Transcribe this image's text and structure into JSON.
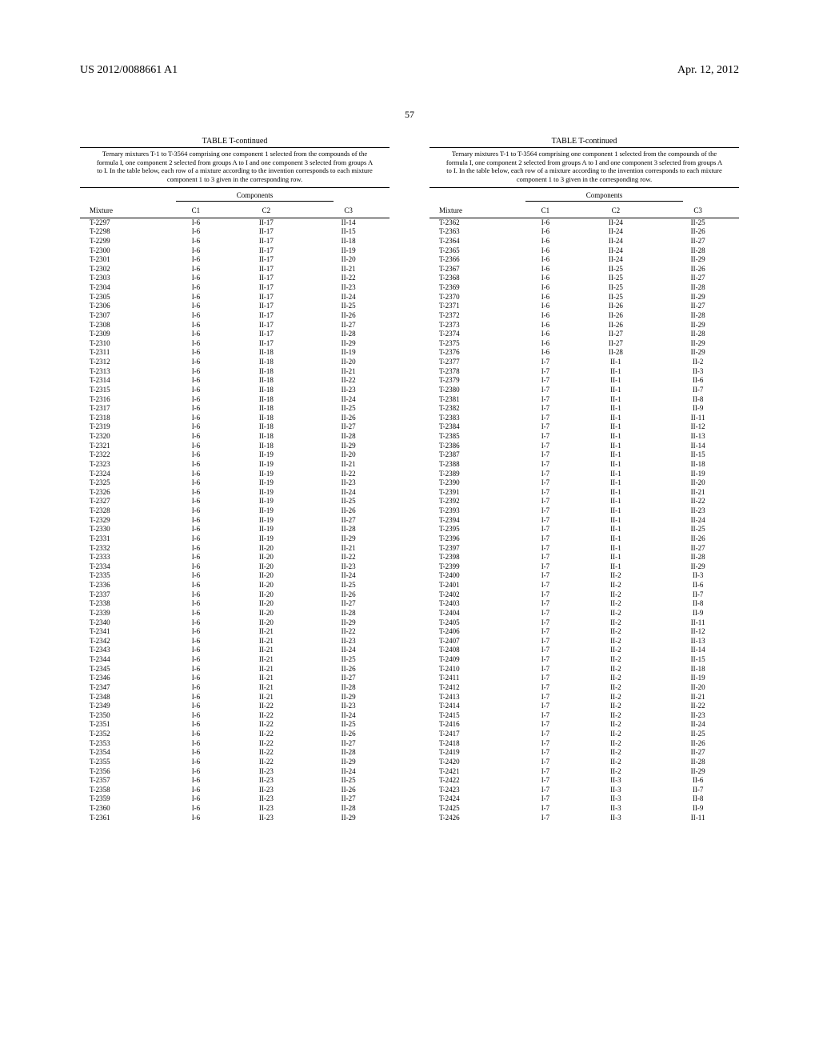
{
  "header": {
    "left": "US 2012/0088661 A1",
    "right": "Apr. 12, 2012",
    "pageNum": "57"
  },
  "table": {
    "title": "TABLE T-continued",
    "caption": "Ternary mixtures T-1 to T-3564 comprising one component 1 selected from the compounds of the formula I, one component 2 selected from groups A to I and one component 3 selected from groups A to I. In the table below, each row of a mixture according to the invention corresponds to each mixture component 1 to 3 given in the corresponding row.",
    "compHeader": "Components",
    "headers": {
      "mix": "Mixture",
      "c1": "C1",
      "c2": "C2",
      "c3": "C3"
    }
  },
  "left": [
    [
      "T-2297",
      "I-6",
      "II-17",
      "II-14"
    ],
    [
      "T-2298",
      "I-6",
      "II-17",
      "II-15"
    ],
    [
      "T-2299",
      "I-6",
      "II-17",
      "II-18"
    ],
    [
      "T-2300",
      "I-6",
      "II-17",
      "II-19"
    ],
    [
      "T-2301",
      "I-6",
      "II-17",
      "II-20"
    ],
    [
      "T-2302",
      "I-6",
      "II-17",
      "II-21"
    ],
    [
      "T-2303",
      "I-6",
      "II-17",
      "II-22"
    ],
    [
      "T-2304",
      "I-6",
      "II-17",
      "II-23"
    ],
    [
      "T-2305",
      "I-6",
      "II-17",
      "II-24"
    ],
    [
      "T-2306",
      "I-6",
      "II-17",
      "II-25"
    ],
    [
      "T-2307",
      "I-6",
      "II-17",
      "II-26"
    ],
    [
      "T-2308",
      "I-6",
      "II-17",
      "II-27"
    ],
    [
      "T-2309",
      "I-6",
      "II-17",
      "II-28"
    ],
    [
      "T-2310",
      "I-6",
      "II-17",
      "II-29"
    ],
    [
      "T-2311",
      "I-6",
      "II-18",
      "II-19"
    ],
    [
      "T-2312",
      "I-6",
      "II-18",
      "II-20"
    ],
    [
      "T-2313",
      "I-6",
      "II-18",
      "II-21"
    ],
    [
      "T-2314",
      "I-6",
      "II-18",
      "II-22"
    ],
    [
      "T-2315",
      "I-6",
      "II-18",
      "II-23"
    ],
    [
      "T-2316",
      "I-6",
      "II-18",
      "II-24"
    ],
    [
      "T-2317",
      "I-6",
      "II-18",
      "II-25"
    ],
    [
      "T-2318",
      "I-6",
      "II-18",
      "II-26"
    ],
    [
      "T-2319",
      "I-6",
      "II-18",
      "II-27"
    ],
    [
      "T-2320",
      "I-6",
      "II-18",
      "II-28"
    ],
    [
      "T-2321",
      "I-6",
      "II-18",
      "II-29"
    ],
    [
      "T-2322",
      "I-6",
      "II-19",
      "II-20"
    ],
    [
      "T-2323",
      "I-6",
      "II-19",
      "II-21"
    ],
    [
      "T-2324",
      "I-6",
      "II-19",
      "II-22"
    ],
    [
      "T-2325",
      "I-6",
      "II-19",
      "II-23"
    ],
    [
      "T-2326",
      "I-6",
      "II-19",
      "II-24"
    ],
    [
      "T-2327",
      "I-6",
      "II-19",
      "II-25"
    ],
    [
      "T-2328",
      "I-6",
      "II-19",
      "II-26"
    ],
    [
      "T-2329",
      "I-6",
      "II-19",
      "II-27"
    ],
    [
      "T-2330",
      "I-6",
      "II-19",
      "II-28"
    ],
    [
      "T-2331",
      "I-6",
      "II-19",
      "II-29"
    ],
    [
      "T-2332",
      "I-6",
      "II-20",
      "II-21"
    ],
    [
      "T-2333",
      "I-6",
      "II-20",
      "II-22"
    ],
    [
      "T-2334",
      "I-6",
      "II-20",
      "II-23"
    ],
    [
      "T-2335",
      "I-6",
      "II-20",
      "II-24"
    ],
    [
      "T-2336",
      "I-6",
      "II-20",
      "II-25"
    ],
    [
      "T-2337",
      "I-6",
      "II-20",
      "II-26"
    ],
    [
      "T-2338",
      "I-6",
      "II-20",
      "II-27"
    ],
    [
      "T-2339",
      "I-6",
      "II-20",
      "II-28"
    ],
    [
      "T-2340",
      "I-6",
      "II-20",
      "II-29"
    ],
    [
      "T-2341",
      "I-6",
      "II-21",
      "II-22"
    ],
    [
      "T-2342",
      "I-6",
      "II-21",
      "II-23"
    ],
    [
      "T-2343",
      "I-6",
      "II-21",
      "II-24"
    ],
    [
      "T-2344",
      "I-6",
      "II-21",
      "II-25"
    ],
    [
      "T-2345",
      "I-6",
      "II-21",
      "II-26"
    ],
    [
      "T-2346",
      "I-6",
      "II-21",
      "II-27"
    ],
    [
      "T-2347",
      "I-6",
      "II-21",
      "II-28"
    ],
    [
      "T-2348",
      "I-6",
      "II-21",
      "II-29"
    ],
    [
      "T-2349",
      "I-6",
      "II-22",
      "II-23"
    ],
    [
      "T-2350",
      "I-6",
      "II-22",
      "II-24"
    ],
    [
      "T-2351",
      "I-6",
      "II-22",
      "II-25"
    ],
    [
      "T-2352",
      "I-6",
      "II-22",
      "II-26"
    ],
    [
      "T-2353",
      "I-6",
      "II-22",
      "II-27"
    ],
    [
      "T-2354",
      "I-6",
      "II-22",
      "II-28"
    ],
    [
      "T-2355",
      "I-6",
      "II-22",
      "II-29"
    ],
    [
      "T-2356",
      "I-6",
      "II-23",
      "II-24"
    ],
    [
      "T-2357",
      "I-6",
      "II-23",
      "II-25"
    ],
    [
      "T-2358",
      "I-6",
      "II-23",
      "II-26"
    ],
    [
      "T-2359",
      "I-6",
      "II-23",
      "II-27"
    ],
    [
      "T-2360",
      "I-6",
      "II-23",
      "II-28"
    ],
    [
      "T-2361",
      "I-6",
      "II-23",
      "II-29"
    ]
  ],
  "right": [
    [
      "T-2362",
      "I-6",
      "II-24",
      "II-25"
    ],
    [
      "T-2363",
      "I-6",
      "II-24",
      "II-26"
    ],
    [
      "T-2364",
      "I-6",
      "II-24",
      "II-27"
    ],
    [
      "T-2365",
      "I-6",
      "II-24",
      "II-28"
    ],
    [
      "T-2366",
      "I-6",
      "II-24",
      "II-29"
    ],
    [
      "T-2367",
      "I-6",
      "II-25",
      "II-26"
    ],
    [
      "T-2368",
      "I-6",
      "II-25",
      "II-27"
    ],
    [
      "T-2369",
      "I-6",
      "II-25",
      "II-28"
    ],
    [
      "T-2370",
      "I-6",
      "II-25",
      "II-29"
    ],
    [
      "T-2371",
      "I-6",
      "II-26",
      "II-27"
    ],
    [
      "T-2372",
      "I-6",
      "II-26",
      "II-28"
    ],
    [
      "T-2373",
      "I-6",
      "II-26",
      "II-29"
    ],
    [
      "T-2374",
      "I-6",
      "II-27",
      "II-28"
    ],
    [
      "T-2375",
      "I-6",
      "II-27",
      "II-29"
    ],
    [
      "T-2376",
      "I-6",
      "II-28",
      "II-29"
    ],
    [
      "T-2377",
      "I-7",
      "II-1",
      "II-2"
    ],
    [
      "T-2378",
      "I-7",
      "II-1",
      "II-3"
    ],
    [
      "T-2379",
      "I-7",
      "II-1",
      "II-6"
    ],
    [
      "T-2380",
      "I-7",
      "II-1",
      "II-7"
    ],
    [
      "T-2381",
      "I-7",
      "II-1",
      "II-8"
    ],
    [
      "T-2382",
      "I-7",
      "II-1",
      "II-9"
    ],
    [
      "T-2383",
      "I-7",
      "II-1",
      "II-11"
    ],
    [
      "T-2384",
      "I-7",
      "II-1",
      "II-12"
    ],
    [
      "T-2385",
      "I-7",
      "II-1",
      "II-13"
    ],
    [
      "T-2386",
      "I-7",
      "II-1",
      "II-14"
    ],
    [
      "T-2387",
      "I-7",
      "II-1",
      "II-15"
    ],
    [
      "T-2388",
      "I-7",
      "II-1",
      "II-18"
    ],
    [
      "T-2389",
      "I-7",
      "II-1",
      "II-19"
    ],
    [
      "T-2390",
      "I-7",
      "II-1",
      "II-20"
    ],
    [
      "T-2391",
      "I-7",
      "II-1",
      "II-21"
    ],
    [
      "T-2392",
      "I-7",
      "II-1",
      "II-22"
    ],
    [
      "T-2393",
      "I-7",
      "II-1",
      "II-23"
    ],
    [
      "T-2394",
      "I-7",
      "II-1",
      "II-24"
    ],
    [
      "T-2395",
      "I-7",
      "II-1",
      "II-25"
    ],
    [
      "T-2396",
      "I-7",
      "II-1",
      "II-26"
    ],
    [
      "T-2397",
      "I-7",
      "II-1",
      "II-27"
    ],
    [
      "T-2398",
      "I-7",
      "II-1",
      "II-28"
    ],
    [
      "T-2399",
      "I-7",
      "II-1",
      "II-29"
    ],
    [
      "T-2400",
      "I-7",
      "II-2",
      "II-3"
    ],
    [
      "T-2401",
      "I-7",
      "II-2",
      "II-6"
    ],
    [
      "T-2402",
      "I-7",
      "II-2",
      "II-7"
    ],
    [
      "T-2403",
      "I-7",
      "II-2",
      "II-8"
    ],
    [
      "T-2404",
      "I-7",
      "II-2",
      "II-9"
    ],
    [
      "T-2405",
      "I-7",
      "II-2",
      "II-11"
    ],
    [
      "T-2406",
      "I-7",
      "II-2",
      "II-12"
    ],
    [
      "T-2407",
      "I-7",
      "II-2",
      "II-13"
    ],
    [
      "T-2408",
      "I-7",
      "II-2",
      "II-14"
    ],
    [
      "T-2409",
      "I-7",
      "II-2",
      "II-15"
    ],
    [
      "T-2410",
      "I-7",
      "II-2",
      "II-18"
    ],
    [
      "T-2411",
      "I-7",
      "II-2",
      "II-19"
    ],
    [
      "T-2412",
      "I-7",
      "II-2",
      "II-20"
    ],
    [
      "T-2413",
      "I-7",
      "II-2",
      "II-21"
    ],
    [
      "T-2414",
      "I-7",
      "II-2",
      "II-22"
    ],
    [
      "T-2415",
      "I-7",
      "II-2",
      "II-23"
    ],
    [
      "T-2416",
      "I-7",
      "II-2",
      "II-24"
    ],
    [
      "T-2417",
      "I-7",
      "II-2",
      "II-25"
    ],
    [
      "T-2418",
      "I-7",
      "II-2",
      "II-26"
    ],
    [
      "T-2419",
      "I-7",
      "II-2",
      "II-27"
    ],
    [
      "T-2420",
      "I-7",
      "II-2",
      "II-28"
    ],
    [
      "T-2421",
      "I-7",
      "II-2",
      "II-29"
    ],
    [
      "T-2422",
      "I-7",
      "II-3",
      "II-6"
    ],
    [
      "T-2423",
      "I-7",
      "II-3",
      "II-7"
    ],
    [
      "T-2424",
      "I-7",
      "II-3",
      "II-8"
    ],
    [
      "T-2425",
      "I-7",
      "II-3",
      "II-9"
    ],
    [
      "T-2426",
      "I-7",
      "II-3",
      "II-11"
    ]
  ]
}
